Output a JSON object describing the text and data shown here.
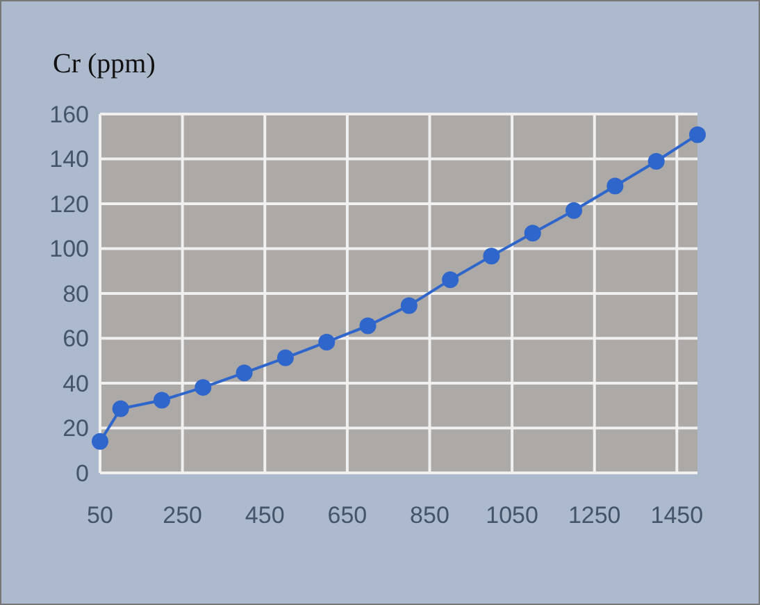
{
  "chart_data": {
    "type": "line",
    "title": "Cr (ppm)",
    "x": [
      50,
      100,
      200,
      300,
      400,
      500,
      600,
      700,
      800,
      900,
      1000,
      1100,
      1200,
      1300,
      1400,
      1500
    ],
    "series": [
      {
        "color": "#2f66cc",
        "values": [
          14,
          28.6,
          32.4,
          38.1,
          44.6,
          51.3,
          58.3,
          65.6,
          74.6,
          86.1,
          96.7,
          106.9,
          117,
          127.9,
          138.9,
          150.8
        ]
      }
    ],
    "xlim": [
      50,
      1500
    ],
    "xticks": [
      50,
      250,
      450,
      650,
      850,
      1050,
      1250,
      1450
    ],
    "ylim": [
      0,
      160
    ],
    "yticks": [
      0,
      20,
      40,
      60,
      80,
      100,
      120,
      140,
      160
    ],
    "grid": true,
    "marker": "circle",
    "line_style": "solid"
  }
}
